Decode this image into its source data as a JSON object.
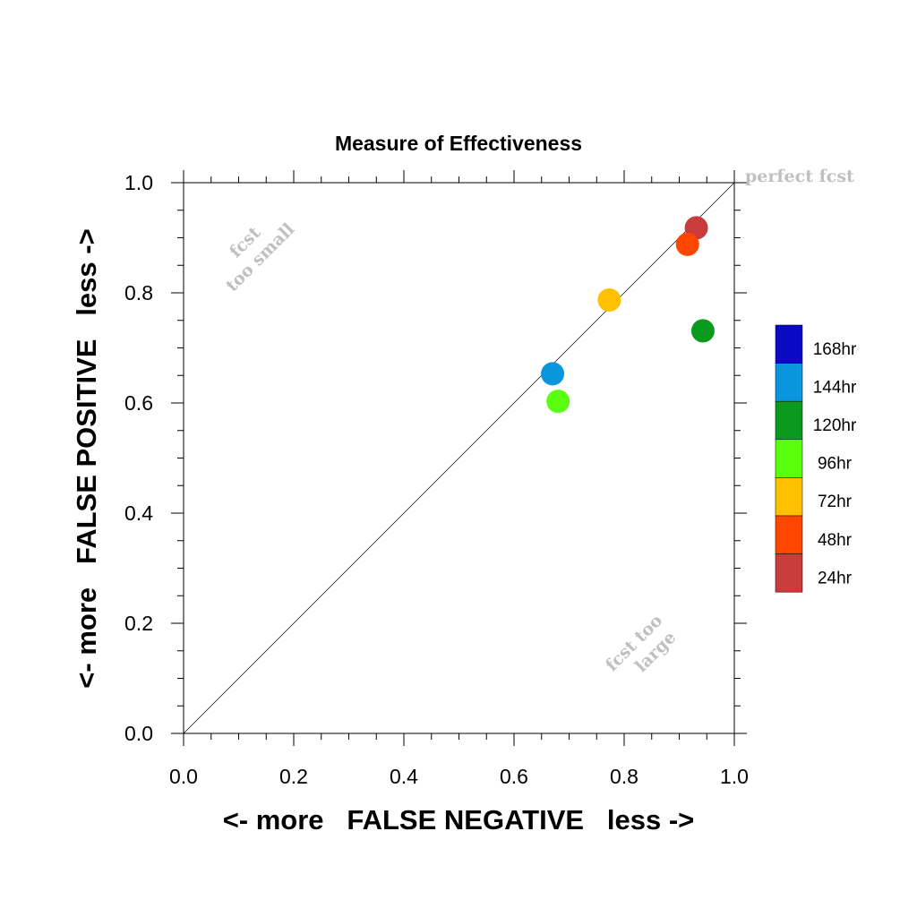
{
  "chart_data": {
    "type": "scatter",
    "title": "Measure of Effectiveness",
    "xlabel": "<- more   FALSE NEGATIVE   less ->",
    "ylabel": "<- more   FALSE POSITIVE   less ->",
    "xlim": [
      0,
      1
    ],
    "ylim": [
      0,
      1
    ],
    "xticks": [
      "0.0",
      "0.2",
      "0.4",
      "0.6",
      "0.8",
      "1.0"
    ],
    "yticks": [
      "0.0",
      "0.2",
      "0.4",
      "0.6",
      "0.8",
      "1.0"
    ],
    "grid": false,
    "diagonal_line": true,
    "annotations": {
      "perfect": "perfect fcst",
      "small_1": "fcst",
      "small_2": "too small",
      "large_1": "fcst too",
      "large_2": "large"
    },
    "legend_placement": "right",
    "legend": [
      {
        "label": "168hr",
        "color": "#0a0ac4"
      },
      {
        "label": "144hr",
        "color": "#0a96dc"
      },
      {
        "label": "120hr",
        "color": "#0a9a1e"
      },
      {
        "label": "96hr",
        "color": "#5aff10"
      },
      {
        "label": "72hr",
        "color": "#ffc000"
      },
      {
        "label": "48hr",
        "color": "#ff4600"
      },
      {
        "label": "24hr",
        "color": "#c83c3c"
      }
    ],
    "series": [
      {
        "name": "144hr",
        "color": "#0a96dc",
        "x": 0.67,
        "y": 0.653
      },
      {
        "name": "96hr",
        "color": "#5aff10",
        "x": 0.68,
        "y": 0.603
      },
      {
        "name": "72hr",
        "color": "#ffc000",
        "x": 0.773,
        "y": 0.787
      },
      {
        "name": "120hr",
        "color": "#0a9a1e",
        "x": 0.943,
        "y": 0.731
      },
      {
        "name": "24hr",
        "color": "#c83c3c",
        "x": 0.931,
        "y": 0.918
      },
      {
        "name": "48hr",
        "color": "#ff4600",
        "x": 0.915,
        "y": 0.888
      }
    ]
  }
}
